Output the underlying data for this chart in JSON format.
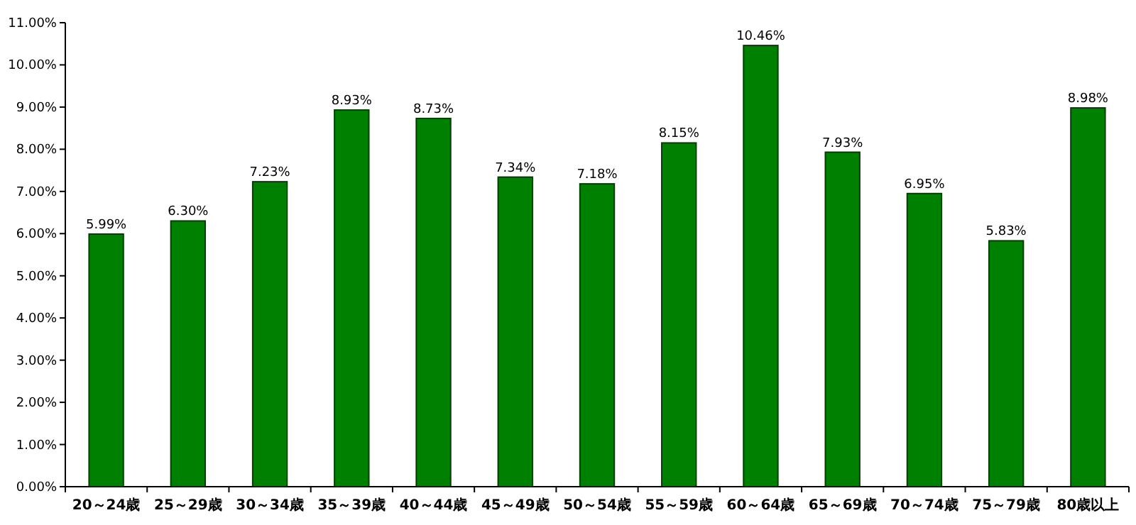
{
  "chart_data": {
    "type": "bar",
    "categories": [
      "20～24歳",
      "25～29歳",
      "30～34歳",
      "35～39歳",
      "40～44歳",
      "45～49歳",
      "50～54歳",
      "55～59歳",
      "60～64歳",
      "65～69歳",
      "70～74歳",
      "75～79歳",
      "80歳以上"
    ],
    "values": [
      5.99,
      6.3,
      7.23,
      8.93,
      8.73,
      7.34,
      7.18,
      8.15,
      10.46,
      7.93,
      6.95,
      5.83,
      8.98
    ],
    "value_labels": [
      "5.99%",
      "6.30%",
      "7.23%",
      "8.93%",
      "8.73%",
      "7.34%",
      "7.18%",
      "8.15%",
      "10.46%",
      "7.93%",
      "6.95%",
      "5.83%",
      "8.98%"
    ],
    "color": "#008000",
    "ylim": [
      0,
      11
    ],
    "yticks": [
      {
        "value": 0,
        "label": "0.00%"
      },
      {
        "value": 1,
        "label": "1.00%"
      },
      {
        "value": 2,
        "label": "2.00%"
      },
      {
        "value": 3,
        "label": "3.00%"
      },
      {
        "value": 4,
        "label": "4.00%"
      },
      {
        "value": 5,
        "label": "5.00%"
      },
      {
        "value": 6,
        "label": "6.00%"
      },
      {
        "value": 7,
        "label": "7.00%"
      },
      {
        "value": 8,
        "label": "8.00%"
      },
      {
        "value": 9,
        "label": "9.00%"
      },
      {
        "value": 10,
        "label": "10.00%"
      },
      {
        "value": 11,
        "label": "11.00%"
      }
    ],
    "grid": false
  }
}
